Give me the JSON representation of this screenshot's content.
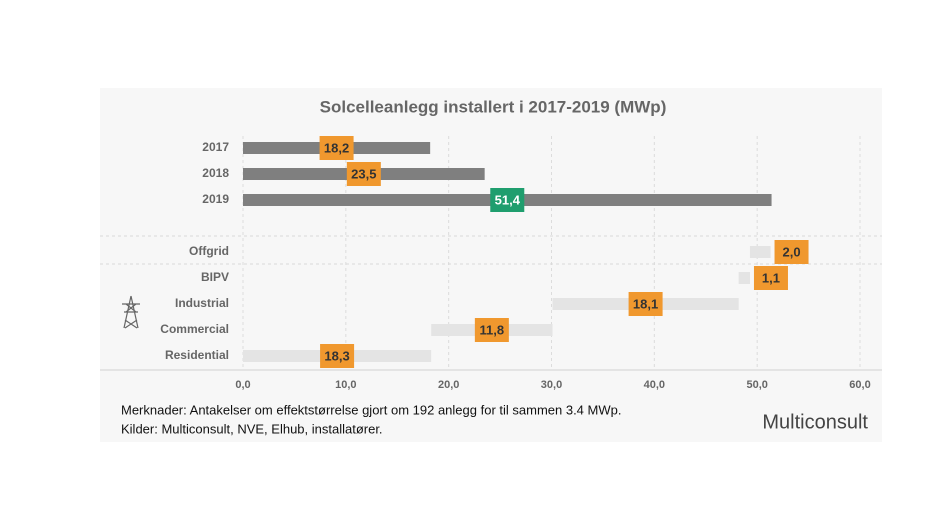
{
  "chart_data": {
    "type": "bar",
    "orientation": "horizontal",
    "title": "Solcelleanlegg installert i 2017-2019 (MWp)",
    "xlim": [
      0,
      60
    ],
    "xticks": [
      {
        "value": 0,
        "label": "0,0"
      },
      {
        "value": 10,
        "label": "10,0"
      },
      {
        "value": 20,
        "label": "20,0"
      },
      {
        "value": 30,
        "label": "30,0"
      },
      {
        "value": 40,
        "label": "40,0"
      },
      {
        "value": 50,
        "label": "50,0"
      },
      {
        "value": 60,
        "label": "60,0"
      }
    ],
    "grid": true,
    "panels": [
      {
        "stacked": false,
        "color": "#7f7f7f",
        "categories": [
          "2017",
          "2018",
          "2019"
        ],
        "values": [
          18.2,
          23.5,
          51.4
        ],
        "value_labels": [
          "18,2",
          "23,5",
          "51,4"
        ],
        "label_colors": [
          "#f0982e",
          "#f0982e",
          "#1f9e6e"
        ],
        "label_text_colors": [
          "#333333",
          "#333333",
          "#ffffff"
        ]
      },
      {
        "stacked": true,
        "color": "#e4e4e4",
        "categories": [
          "Offgrid",
          "BIPV",
          "Industrial",
          "Commercial",
          "Residential"
        ],
        "values": [
          2.0,
          1.1,
          18.1,
          11.8,
          18.3
        ],
        "value_labels": [
          "2,0",
          "1,1",
          "18,1",
          "11,8",
          "18,3"
        ],
        "label_colors": [
          "#f0982e",
          "#f0982e",
          "#f0982e",
          "#f0982e",
          "#f0982e"
        ],
        "label_text_colors": [
          "#333333",
          "#333333",
          "#333333",
          "#333333",
          "#333333"
        ]
      }
    ],
    "notes": [
      "Merknader: Antakelser om effektstørrelse gjort om 192 anlegg for til sammen 3.4 MWp.",
      "Kilder: Multiconsult, NVE, Elhub, installatører."
    ],
    "logo": "Multiconsult"
  }
}
